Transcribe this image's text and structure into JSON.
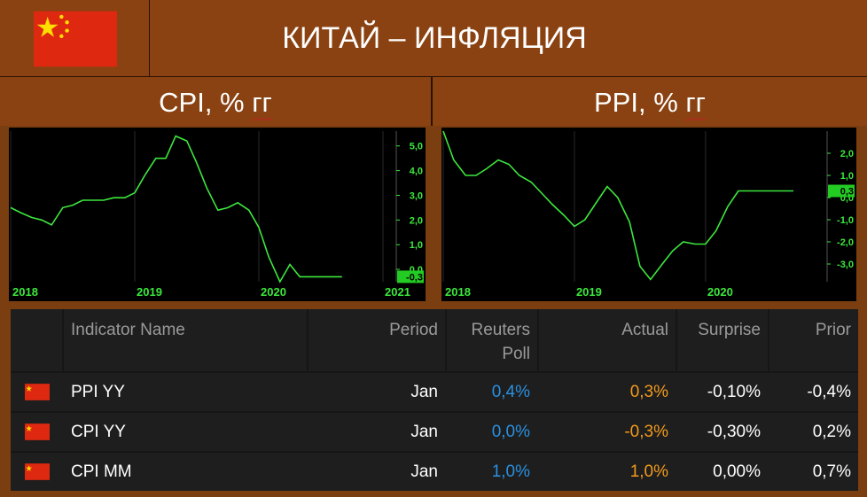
{
  "header": {
    "title": "КИТАЙ – ИНФЛЯЦИЯ",
    "flag_icon": "china-flag-icon"
  },
  "panels": {
    "left_title_a": "CPI, % ",
    "left_title_b": "гг",
    "right_title_a": "PPI, % ",
    "right_title_b": "гг"
  },
  "colors": {
    "line": "#3de83d",
    "grid": "#2a2a2a",
    "axis_text": "#3de83d",
    "panel_bg": "#8a4212",
    "actual": "#f29a1c",
    "poll": "#2a90e0"
  },
  "chart_data": [
    {
      "type": "line",
      "x_labels": [
        "2018",
        "2019",
        "2020",
        "2021"
      ],
      "x_label_positions": [
        0,
        1,
        2,
        3
      ],
      "y_ticks": [
        "5,0",
        "4,0",
        "3,0",
        "2,0",
        "1,0",
        "0,0"
      ],
      "ylim": [
        -0.5,
        5.6
      ],
      "xlim": [
        0,
        3.1
      ],
      "current_label": "-0,3",
      "x": [
        0,
        0.08,
        0.17,
        0.25,
        0.33,
        0.42,
        0.5,
        0.58,
        0.67,
        0.75,
        0.83,
        0.92,
        1.0,
        1.08,
        1.17,
        1.25,
        1.33,
        1.42,
        1.5,
        1.58,
        1.67,
        1.75,
        1.83,
        1.92,
        2.0,
        2.08,
        2.17,
        2.25,
        2.33,
        2.42,
        2.5,
        2.58,
        2.67
      ],
      "values": [
        2.5,
        2.3,
        2.1,
        2.0,
        1.8,
        2.5,
        2.6,
        2.8,
        2.8,
        2.8,
        2.9,
        2.9,
        3.1,
        3.8,
        4.5,
        4.5,
        5.4,
        5.2,
        4.3,
        3.3,
        2.4,
        2.5,
        2.7,
        2.4,
        1.7,
        0.5,
        -0.5,
        0.2,
        -0.3,
        -0.3,
        -0.3,
        -0.3,
        -0.3
      ]
    },
    {
      "type": "line",
      "x_labels": [
        "2018",
        "2019",
        "2020"
      ],
      "x_label_positions": [
        0,
        1,
        2
      ],
      "y_ticks": [
        "2,0",
        "1,0",
        "0,0",
        "-1,0",
        "-2,0",
        "-3,0"
      ],
      "ylim": [
        -3.8,
        3.0
      ],
      "xlim": [
        0,
        2.92
      ],
      "current_label": "0,3",
      "x": [
        0,
        0.08,
        0.17,
        0.25,
        0.33,
        0.42,
        0.5,
        0.58,
        0.67,
        0.75,
        0.83,
        0.92,
        1.0,
        1.08,
        1.17,
        1.25,
        1.33,
        1.42,
        1.5,
        1.58,
        1.67,
        1.75,
        1.83,
        1.92,
        2.0,
        2.08,
        2.17,
        2.25,
        2.33,
        2.42,
        2.5,
        2.58,
        2.67
      ],
      "values": [
        3.0,
        1.7,
        1.0,
        1.0,
        1.3,
        1.7,
        1.5,
        1.0,
        0.7,
        0.2,
        -0.3,
        -0.8,
        -1.3,
        -1.0,
        -0.2,
        0.5,
        0.0,
        -1.1,
        -3.1,
        -3.7,
        -3.0,
        -2.4,
        -2.0,
        -2.1,
        -2.1,
        -1.5,
        -0.4,
        0.3,
        0.3,
        0.3,
        0.3,
        0.3,
        0.3
      ]
    }
  ],
  "table": {
    "headers": {
      "name": "Indicator Name",
      "period": "Period",
      "poll_a": "Reuters",
      "poll_b": "Poll",
      "actual": "Actual",
      "surprise": "Surprise",
      "prior": "Prior"
    },
    "rows": [
      {
        "name": "PPI YY",
        "period": "Jan",
        "poll": "0,4%",
        "actual": "0,3%",
        "surprise": "-0,10%",
        "prior": "-0,4%"
      },
      {
        "name": "CPI YY",
        "period": "Jan",
        "poll": "0,0%",
        "actual": "-0,3%",
        "surprise": "-0,30%",
        "prior": "0,2%"
      },
      {
        "name": "CPI MM",
        "period": "Jan",
        "poll": "1,0%",
        "actual": "1,0%",
        "surprise": "0,00%",
        "prior": "0,7%"
      }
    ]
  }
}
